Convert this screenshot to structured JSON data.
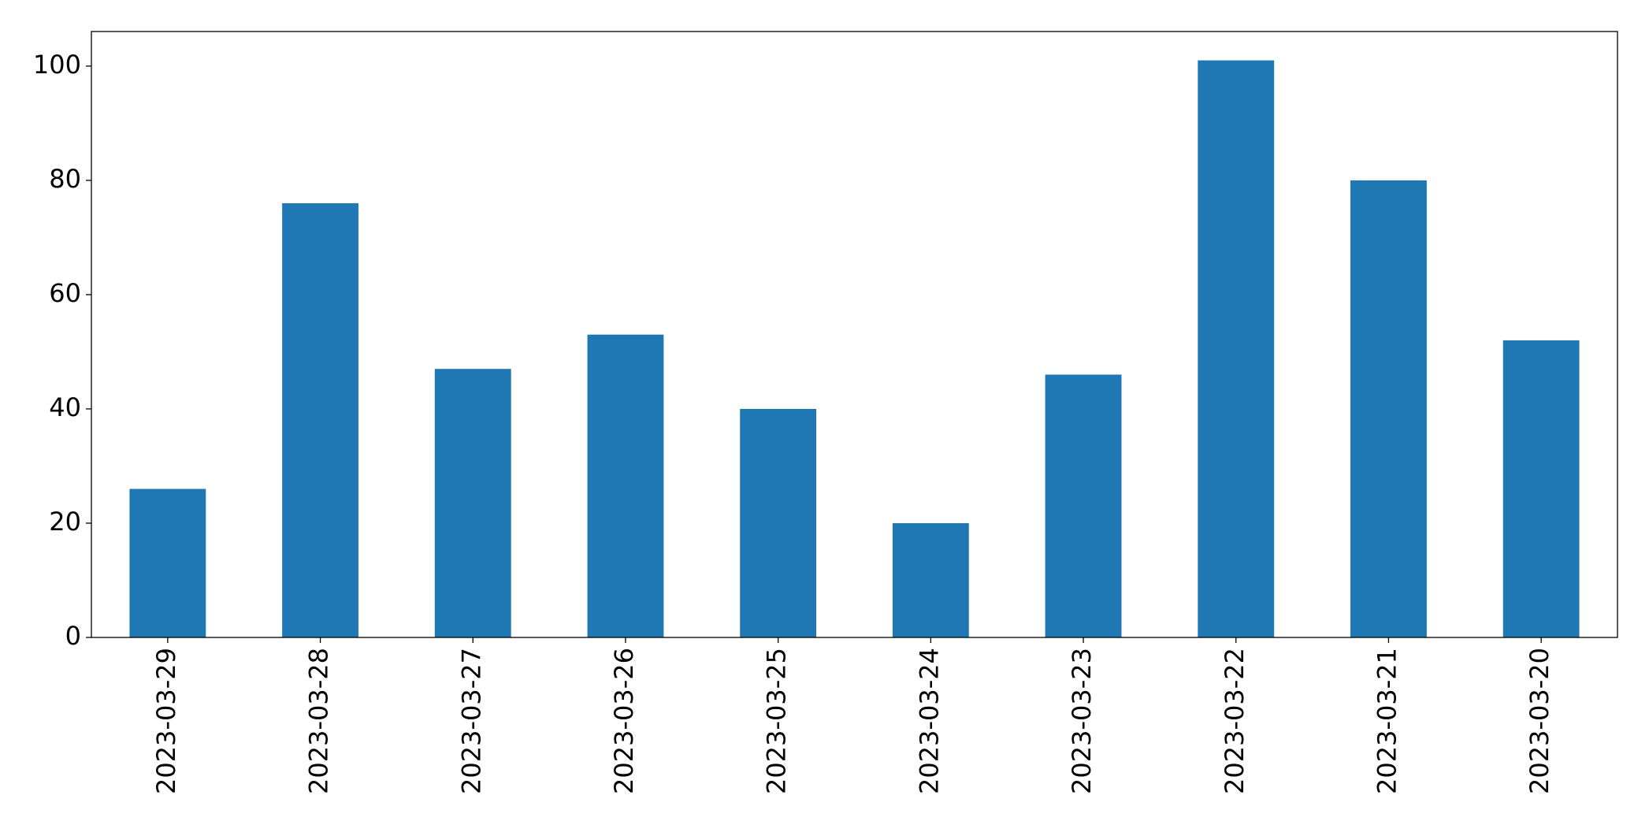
{
  "chart_data": {
    "type": "bar",
    "categories": [
      "2023-03-29",
      "2023-03-28",
      "2023-03-27",
      "2023-03-26",
      "2023-03-25",
      "2023-03-24",
      "2023-03-23",
      "2023-03-22",
      "2023-03-21",
      "2023-03-20"
    ],
    "values": [
      26,
      76,
      47,
      53,
      40,
      20,
      46,
      101,
      80,
      52
    ],
    "color": "#1f77b4",
    "ylim": [
      0,
      106.05
    ],
    "yticks": [
      0,
      20,
      40,
      60,
      80,
      100
    ],
    "grid": false
  }
}
